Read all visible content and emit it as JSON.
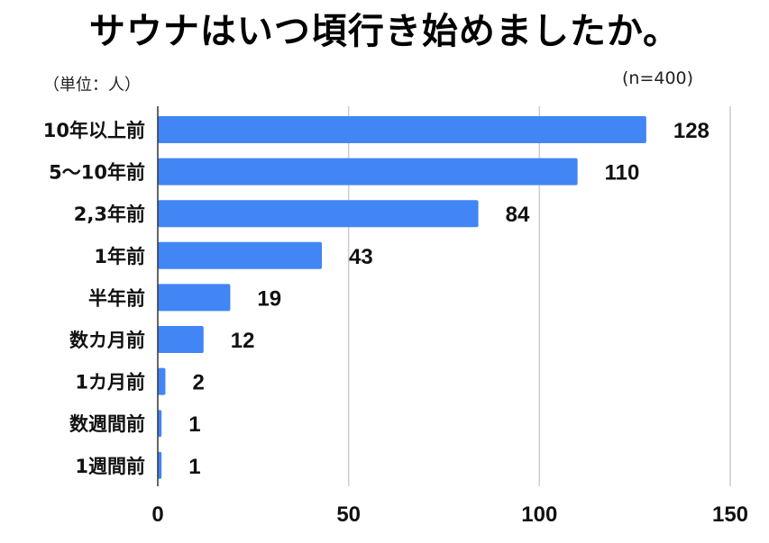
{
  "chart_data": {
    "type": "bar",
    "orientation": "horizontal",
    "title": "サウナはいつ頃行き始めましたか。",
    "unit_note": "（単位：人）",
    "sample_note": "(n=400)",
    "categories": [
      "10年以上前",
      "5〜10年前",
      "2,3年前",
      "1年前",
      "半年前",
      "数カ月前",
      "1カ月前",
      "数週間前",
      "1週間前"
    ],
    "values": [
      128,
      110,
      84,
      43,
      19,
      12,
      2,
      1,
      1
    ],
    "xlim": [
      0,
      150
    ],
    "x_ticks": [
      0,
      50,
      100,
      150
    ],
    "grid": true,
    "legend": "none",
    "bar_color": "#4285f4",
    "grid_color": "#cccccc",
    "axis_color": "#333333"
  }
}
